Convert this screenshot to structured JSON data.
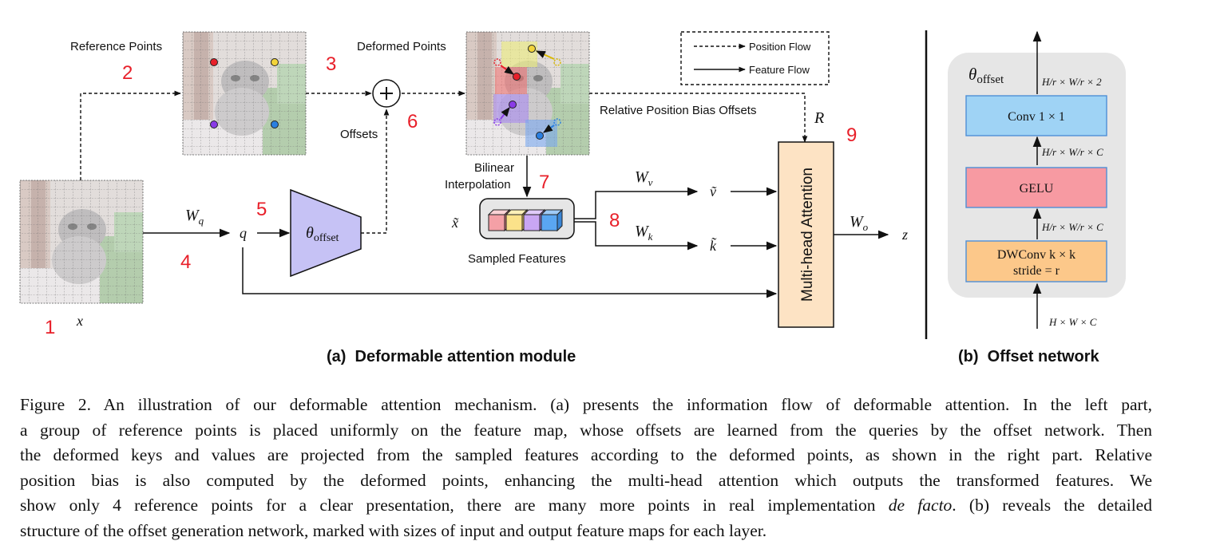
{
  "panel_a": {
    "title": "(a)  Deformable attention module",
    "labels": {
      "reference_points": "Reference Points",
      "deformed_points": "Deformed Points",
      "offsets": "Offsets",
      "relative_bias": "Relative Position Bias Offsets",
      "bilinear_1": "Bilinear",
      "bilinear_2": "Interpolation",
      "sampled_features": "Sampled Features",
      "attention": "Multi-head Attention",
      "theta": "θ",
      "theta_sub": "offset",
      "x": "x",
      "q": "q",
      "z": "z",
      "R": "R",
      "x_tilde": "x̃",
      "v_tilde": "ṽ",
      "k_tilde": "k̃",
      "Wq": "W",
      "Wq_sub": "q",
      "Wv": "W",
      "Wv_sub": "v",
      "Wk": "W",
      "Wk_sub": "k",
      "Wo": "W",
      "Wo_sub": "o",
      "plus": "+"
    },
    "legend": {
      "position_flow": "Position Flow",
      "feature_flow": "Feature Flow"
    },
    "step_numbers": [
      "1",
      "2",
      "3",
      "4",
      "5",
      "6",
      "7",
      "8",
      "9"
    ]
  },
  "panel_b": {
    "title": "(b)  Offset network",
    "theta": "θ",
    "theta_sub": "offset",
    "layers": {
      "conv": "Conv 1 × 1",
      "gelu": "GELU",
      "dwconv_1": "DWConv k × k",
      "dwconv_2": "stride = r"
    },
    "dims": {
      "input": "H × W × C",
      "after_dwconv": "H/r × W/r × C",
      "after_gelu": "H/r × W/r × C",
      "output": "H/r × W/r × 2"
    }
  },
  "caption": {
    "lines": [
      "Figure 2. An illustration of our deformable attention mechanism. (a) presents the information flow of deformable attention. In the left part,",
      "a group of reference points is placed uniformly on the feature map, whose offsets are learned from the queries by the offset network. Then",
      "the deformed keys and values are projected from the sampled features according to the deformed points, as shown in the right part. Relative",
      "position bias is also computed by the deformed points, enhancing the multi-head attention which outputs the transformed features.  We",
      "show only 4 reference points for a clear presentation, there are many more points in real implementation ",
      "de facto",
      ". (b) reveals the detailed",
      "structure of the offset generation network, marked with sizes of input and output feature maps for each layer."
    ]
  },
  "colors": {
    "offset_block": "#c6c2f5",
    "attention_block": "#fde3c4",
    "conv_block": "#9fd3f5",
    "gelu_block": "#f79aa2",
    "dwconv_block": "#fcc88a",
    "panel_b_bg": "#e6e6e6",
    "number_red": "#e8202a"
  },
  "icons": [
    "cat-image-icon",
    "plus-circle-icon",
    "feature-cube-icon"
  ]
}
